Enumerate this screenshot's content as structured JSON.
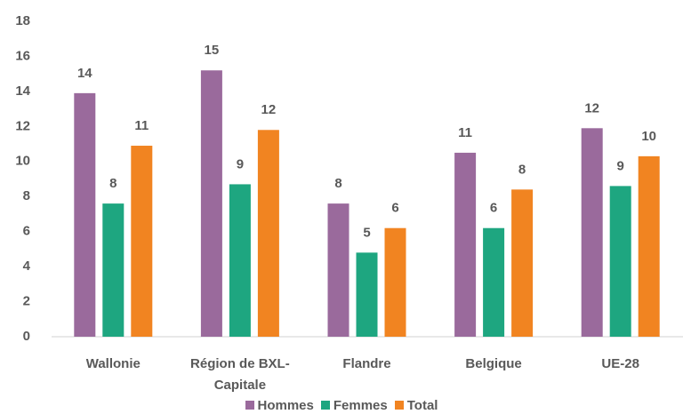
{
  "chart_data": {
    "type": "bar",
    "categories": [
      "Wallonie",
      "Région de BXL-Capitale",
      "Flandre",
      "Belgique",
      "UE-28"
    ],
    "series": [
      {
        "name": "Hommes",
        "color": "#9a6a9c",
        "values": [
          13.9,
          15.2,
          7.6,
          10.5,
          11.9
        ],
        "value_labels": [
          "14",
          "15",
          "8",
          "11",
          "12"
        ]
      },
      {
        "name": "Femmes",
        "color": "#1ea680",
        "values": [
          7.6,
          8.7,
          4.8,
          6.2,
          8.6
        ],
        "value_labels": [
          "8",
          "9",
          "5",
          "6",
          "9"
        ]
      },
      {
        "name": "Total",
        "color": "#f18421",
        "values": [
          10.9,
          11.8,
          6.2,
          8.4,
          10.3
        ],
        "value_labels": [
          "11",
          "12",
          "6",
          "8",
          "10"
        ]
      }
    ],
    "ylim": [
      0,
      18
    ],
    "yticks": [
      0,
      2,
      4,
      6,
      8,
      10,
      12,
      14,
      16,
      18
    ],
    "grid": false,
    "legend": "bottom"
  }
}
